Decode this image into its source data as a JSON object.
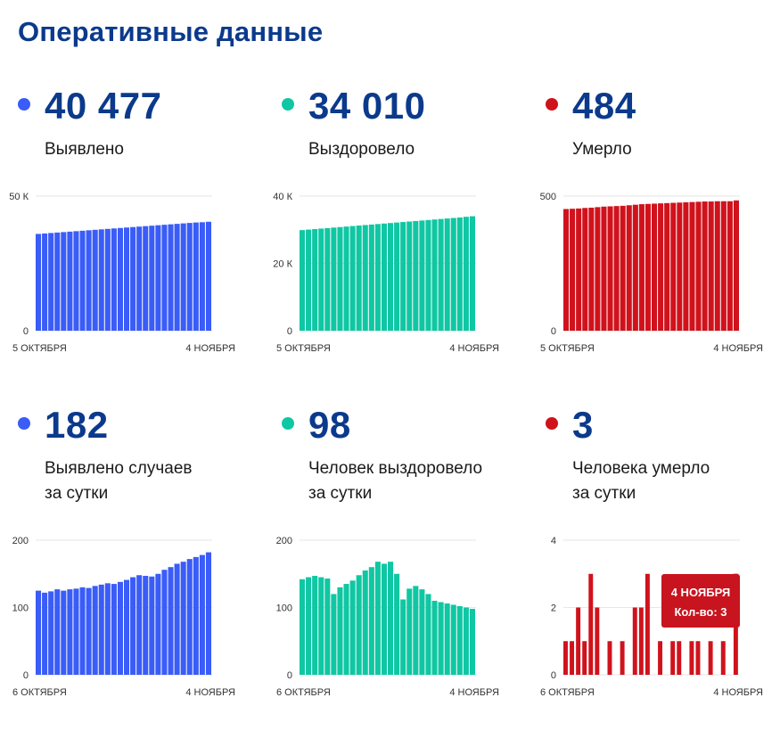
{
  "page": {
    "title": "Оперативные данные"
  },
  "colors": {
    "blue": "#3a5cf7",
    "green": "#0fc7a3",
    "red": "#d0121c",
    "navy": "#0b3a8c"
  },
  "panels": [
    {
      "id": "detected-total",
      "color": "#3a5cf7",
      "value": "40 477",
      "caption_lines": [
        "Выявлено"
      ],
      "x_labels": [
        "5 ОКТЯБРЯ",
        "4 НОЯБРЯ"
      ],
      "chart_data": {
        "type": "bar",
        "y_ticks": [
          {
            "value": 0,
            "label": "0"
          },
          {
            "value": 50000,
            "label": "50 К"
          }
        ],
        "ylim": [
          0,
          50000
        ],
        "values": [
          35950,
          36120,
          36290,
          36460,
          36630,
          36800,
          36970,
          37140,
          37310,
          37480,
          37650,
          37820,
          37990,
          38160,
          38330,
          38500,
          38670,
          38840,
          39010,
          39180,
          39350,
          39520,
          39690,
          39860,
          40030,
          40200,
          40295,
          40477
        ]
      }
    },
    {
      "id": "recovered-total",
      "color": "#0fc7a3",
      "value": "34 010",
      "caption_lines": [
        "Выздоровело"
      ],
      "x_labels": [
        "5 ОКТЯБРЯ",
        "4 НОЯБРЯ"
      ],
      "chart_data": {
        "type": "bar",
        "y_ticks": [
          {
            "value": 0,
            "label": "0"
          },
          {
            "value": 20000,
            "label": "20 К"
          },
          {
            "value": 40000,
            "label": "40 К"
          }
        ],
        "ylim": [
          0,
          40000
        ],
        "values": [
          29900,
          30050,
          30200,
          30350,
          30500,
          30650,
          30800,
          30950,
          31100,
          31250,
          31400,
          31550,
          31700,
          31850,
          32000,
          32150,
          32300,
          32450,
          32600,
          32750,
          32900,
          33050,
          33200,
          33350,
          33500,
          33650,
          33850,
          34010
        ]
      }
    },
    {
      "id": "deaths-total",
      "color": "#d0121c",
      "value": "484",
      "caption_lines": [
        "Умерло"
      ],
      "x_labels": [
        "5 ОКТЯБРЯ",
        "4 НОЯБРЯ"
      ],
      "chart_data": {
        "type": "bar",
        "y_ticks": [
          {
            "value": 0,
            "label": "0"
          },
          {
            "value": 500,
            "label": "500"
          }
        ],
        "ylim": [
          0,
          500
        ],
        "values": [
          452,
          453,
          454,
          456,
          457,
          459,
          461,
          462,
          463,
          464,
          466,
          468,
          470,
          471,
          472,
          473,
          474,
          475,
          476,
          477,
          478,
          479,
          480,
          480,
          481,
          481,
          481,
          484
        ]
      }
    },
    {
      "id": "detected-daily",
      "color": "#3a5cf7",
      "value": "182",
      "caption_lines": [
        "Выявлено случаев",
        "за сутки"
      ],
      "x_labels": [
        "6 ОКТЯБРЯ",
        "4 НОЯБРЯ"
      ],
      "chart_data": {
        "type": "bar",
        "y_ticks": [
          {
            "value": 0,
            "label": "0"
          },
          {
            "value": 100,
            "label": "100"
          },
          {
            "value": 200,
            "label": "200"
          }
        ],
        "ylim": [
          0,
          200
        ],
        "values": [
          125,
          122,
          124,
          127,
          125,
          127,
          128,
          130,
          129,
          132,
          134,
          136,
          135,
          138,
          141,
          145,
          148,
          147,
          146,
          150,
          156,
          160,
          165,
          168,
          172,
          175,
          178,
          182
        ]
      }
    },
    {
      "id": "recovered-daily",
      "color": "#0fc7a3",
      "value": "98",
      "caption_lines": [
        "Человек выздоровело",
        "за сутки"
      ],
      "x_labels": [
        "6 ОКТЯБРЯ",
        "4 НОЯБРЯ"
      ],
      "chart_data": {
        "type": "bar",
        "y_ticks": [
          {
            "value": 0,
            "label": "0"
          },
          {
            "value": 100,
            "label": "100"
          },
          {
            "value": 200,
            "label": "200"
          }
        ],
        "ylim": [
          0,
          200
        ],
        "values": [
          142,
          145,
          147,
          145,
          143,
          120,
          130,
          135,
          140,
          148,
          155,
          160,
          168,
          165,
          168,
          150,
          112,
          128,
          132,
          127,
          120,
          110,
          108,
          106,
          104,
          102,
          100,
          98
        ]
      }
    },
    {
      "id": "deaths-daily",
      "color": "#d0121c",
      "value": "3",
      "caption_lines": [
        "Человека умерло",
        "за сутки"
      ],
      "x_labels": [
        "6 ОКТЯБРЯ",
        "4 НОЯБРЯ"
      ],
      "tooltip": {
        "date": "4 НОЯБРЯ",
        "text": "Кол-во: 3"
      },
      "chart_data": {
        "type": "bar",
        "y_ticks": [
          {
            "value": 0,
            "label": "0"
          },
          {
            "value": 2,
            "label": "2"
          },
          {
            "value": 4,
            "label": "4"
          }
        ],
        "ylim": [
          0,
          4
        ],
        "values": [
          1,
          1,
          2,
          1,
          3,
          2,
          0,
          1,
          0,
          1,
          0,
          2,
          2,
          3,
          0,
          1,
          0,
          1,
          1,
          0,
          1,
          1,
          0,
          1,
          0,
          1,
          0,
          3
        ],
        "highlight_index": 27
      }
    }
  ]
}
